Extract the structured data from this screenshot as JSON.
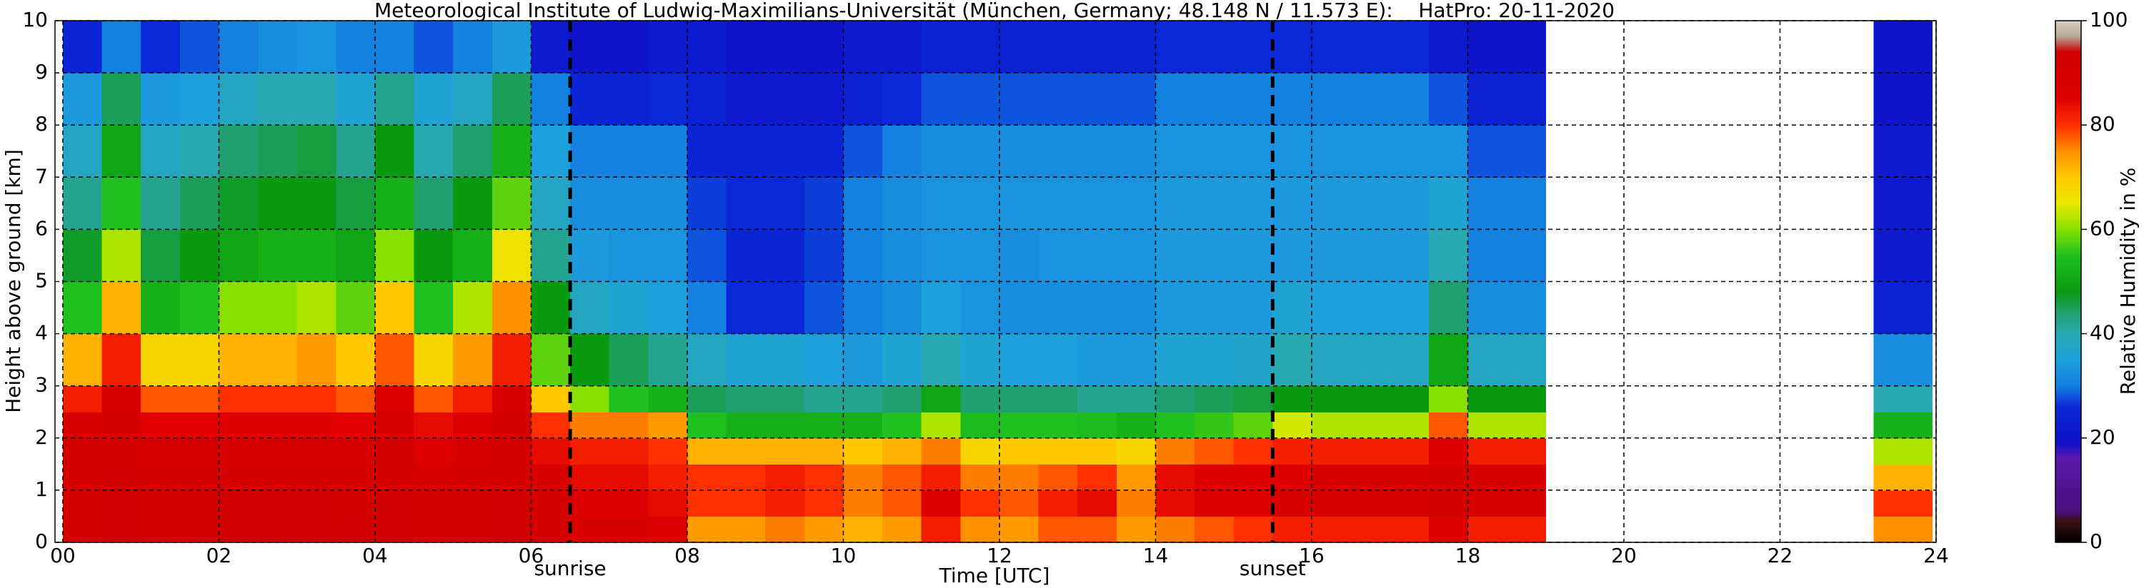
{
  "chart_data": {
    "type": "heatmap",
    "title": "Meteorological Institute of Ludwig-Maximilians-Universität (München, Germany; 48.148 N / 11.573 E):    HatPro: 20-11-2020",
    "xlabel": "Time [UTC]",
    "ylabel": "Height above ground [km]",
    "colorbar_label": "Relative Humidity in %",
    "xlim": [
      -0.1,
      24
    ],
    "ylim": [
      0,
      10
    ],
    "clim": [
      0,
      100
    ],
    "xticks": [
      {
        "value": 0,
        "label": "00"
      },
      {
        "value": 2,
        "label": "02"
      },
      {
        "value": 4,
        "label": "04"
      },
      {
        "value": 6,
        "label": "06"
      },
      {
        "value": 8,
        "label": "08"
      },
      10,
      12,
      14,
      16,
      18,
      20,
      22,
      24
    ],
    "yticks": [
      0,
      1,
      2,
      3,
      4,
      5,
      6,
      7,
      8,
      9,
      10
    ],
    "cticks": [
      0,
      20,
      40,
      60,
      80,
      100
    ],
    "grid": true,
    "colorscale": [
      [
        0,
        "#000000"
      ],
      [
        4,
        "#3a1010"
      ],
      [
        6,
        "#4a1080"
      ],
      [
        16,
        "#5a18a8"
      ],
      [
        19,
        "#1010c8"
      ],
      [
        26,
        "#0a28d8"
      ],
      [
        30,
        "#1480e0"
      ],
      [
        35,
        "#1ea0dc"
      ],
      [
        40,
        "#28a8b0"
      ],
      [
        44,
        "#20a070"
      ],
      [
        48,
        "#0a9a10"
      ],
      [
        55,
        "#20c020"
      ],
      [
        60,
        "#88e000"
      ],
      [
        65,
        "#e8e800"
      ],
      [
        70,
        "#ffc800"
      ],
      [
        75,
        "#ff9000"
      ],
      [
        80,
        "#ff3000"
      ],
      [
        85,
        "#e00000"
      ],
      [
        94,
        "#cc0000"
      ],
      [
        97,
        "#b8a898"
      ],
      [
        100,
        "#d8d0c0"
      ]
    ],
    "annotations": [
      {
        "text": "sunrise",
        "x": 6.5
      },
      {
        "text": "sunset",
        "x": 15.5
      }
    ],
    "xbins": [
      0,
      0.5,
      1,
      1.5,
      2,
      2.5,
      3,
      3.5,
      4,
      4.5,
      5,
      5.5,
      6,
      6.5,
      7,
      7.5,
      8,
      8.5,
      9,
      9.5,
      10,
      10.5,
      11,
      11.5,
      12,
      12.5,
      13,
      13.5,
      14,
      14.5,
      15,
      15.5,
      16,
      16.5,
      17,
      17.5,
      18,
      18.5,
      19,
      23.2,
      23.6,
      23.95
    ],
    "ybins": [
      0,
      0.5,
      1,
      1.5,
      2,
      2.5,
      3,
      4,
      5,
      6,
      7,
      8,
      9,
      10
    ],
    "z": [
      [
        90,
        90,
        90,
        90,
        88,
        82,
        72,
        55,
        47,
        42,
        38,
        34,
        25
      ],
      [
        92,
        92,
        92,
        90,
        90,
        88,
        82,
        72,
        62,
        55,
        50,
        45,
        30
      ],
      [
        90,
        90,
        90,
        88,
        85,
        78,
        68,
        52,
        46,
        42,
        38,
        34,
        26
      ],
      [
        90,
        90,
        90,
        88,
        85,
        78,
        68,
        55,
        48,
        45,
        40,
        35,
        28
      ],
      [
        92,
        92,
        90,
        88,
        86,
        80,
        72,
        60,
        50,
        47,
        44,
        38,
        30
      ],
      [
        92,
        92,
        90,
        88,
        86,
        80,
        72,
        60,
        52,
        48,
        45,
        40,
        32
      ],
      [
        92,
        92,
        90,
        88,
        86,
        80,
        74,
        62,
        52,
        48,
        46,
        40,
        33
      ],
      [
        92,
        90,
        90,
        88,
        85,
        78,
        70,
        58,
        50,
        46,
        42,
        36,
        30
      ],
      [
        92,
        92,
        90,
        90,
        88,
        86,
        78,
        70,
        60,
        52,
        48,
        42,
        30
      ],
      [
        90,
        90,
        88,
        86,
        84,
        78,
        68,
        55,
        48,
        44,
        40,
        36,
        28
      ],
      [
        90,
        90,
        90,
        88,
        86,
        82,
        74,
        62,
        52,
        48,
        44,
        38,
        30
      ],
      [
        92,
        92,
        90,
        90,
        90,
        88,
        82,
        75,
        66,
        58,
        52,
        45,
        34
      ],
      [
        90,
        90,
        88,
        84,
        80,
        70,
        58,
        48,
        42,
        38,
        35,
        30,
        22
      ],
      [
        88,
        86,
        84,
        82,
        76,
        60,
        48,
        38,
        34,
        32,
        30,
        25,
        20
      ],
      [
        88,
        86,
        84,
        82,
        76,
        55,
        45,
        36,
        33,
        32,
        30,
        25,
        20
      ],
      [
        86,
        84,
        82,
        80,
        74,
        52,
        42,
        35,
        33,
        32,
        30,
        26,
        22
      ],
      [
        74,
        80,
        80,
        72,
        55,
        45,
        38,
        30,
        28,
        27,
        25,
        24,
        22
      ],
      [
        74,
        80,
        80,
        72,
        52,
        44,
        36,
        26,
        25,
        26,
        24,
        22,
        20
      ],
      [
        76,
        82,
        82,
        72,
        52,
        44,
        36,
        26,
        25,
        26,
        25,
        22,
        20
      ],
      [
        74,
        80,
        80,
        72,
        52,
        42,
        35,
        28,
        27,
        27,
        25,
        22,
        20
      ],
      [
        72,
        76,
        76,
        70,
        52,
        42,
        34,
        30,
        30,
        30,
        28,
        24,
        22
      ],
      [
        74,
        78,
        78,
        72,
        55,
        44,
        36,
        32,
        32,
        32,
        30,
        26,
        22
      ],
      [
        82,
        86,
        82,
        76,
        62,
        50,
        40,
        35,
        33,
        33,
        32,
        28,
        24
      ],
      [
        75,
        80,
        76,
        68,
        54,
        44,
        36,
        33,
        33,
        33,
        32,
        28,
        24
      ],
      [
        74,
        78,
        76,
        70,
        55,
        44,
        35,
        32,
        32,
        33,
        32,
        28,
        24
      ],
      [
        78,
        82,
        78,
        70,
        55,
        44,
        35,
        32,
        33,
        33,
        32,
        28,
        24
      ],
      [
        78,
        84,
        80,
        70,
        54,
        42,
        34,
        32,
        33,
        33,
        32,
        28,
        24
      ],
      [
        74,
        76,
        74,
        68,
        52,
        42,
        34,
        32,
        33,
        33,
        32,
        28,
        24
      ],
      [
        76,
        84,
        84,
        76,
        55,
        44,
        36,
        34,
        34,
        34,
        33,
        30,
        26
      ],
      [
        78,
        86,
        86,
        78,
        56,
        45,
        36,
        34,
        34,
        34,
        33,
        30,
        26
      ],
      [
        80,
        86,
        86,
        80,
        58,
        46,
        37,
        34,
        34,
        34,
        33,
        30,
        26
      ],
      [
        82,
        88,
        86,
        82,
        64,
        48,
        40,
        36,
        34,
        34,
        33,
        30,
        26
      ],
      [
        82,
        88,
        88,
        82,
        62,
        48,
        38,
        35,
        34,
        34,
        33,
        30,
        26
      ],
      [
        82,
        88,
        88,
        82,
        62,
        48,
        38,
        35,
        34,
        34,
        33,
        30,
        26
      ],
      [
        82,
        88,
        88,
        82,
        62,
        48,
        38,
        35,
        34,
        34,
        33,
        30,
        26
      ],
      [
        86,
        90,
        90,
        86,
        78,
        60,
        50,
        44,
        40,
        36,
        33,
        28,
        22
      ],
      [
        82,
        88,
        88,
        82,
        62,
        48,
        38,
        32,
        30,
        30,
        28,
        24,
        20
      ],
      [
        82,
        88,
        88,
        82,
        62,
        48,
        38,
        32,
        30,
        30,
        28,
        24,
        20
      ],
      null,
      [
        75,
        80,
        72,
        62,
        52,
        40,
        32,
        24,
        22,
        22,
        22,
        20,
        20
      ],
      [
        75,
        80,
        72,
        62,
        52,
        40,
        32,
        24,
        22,
        22,
        22,
        20,
        20
      ]
    ]
  }
}
